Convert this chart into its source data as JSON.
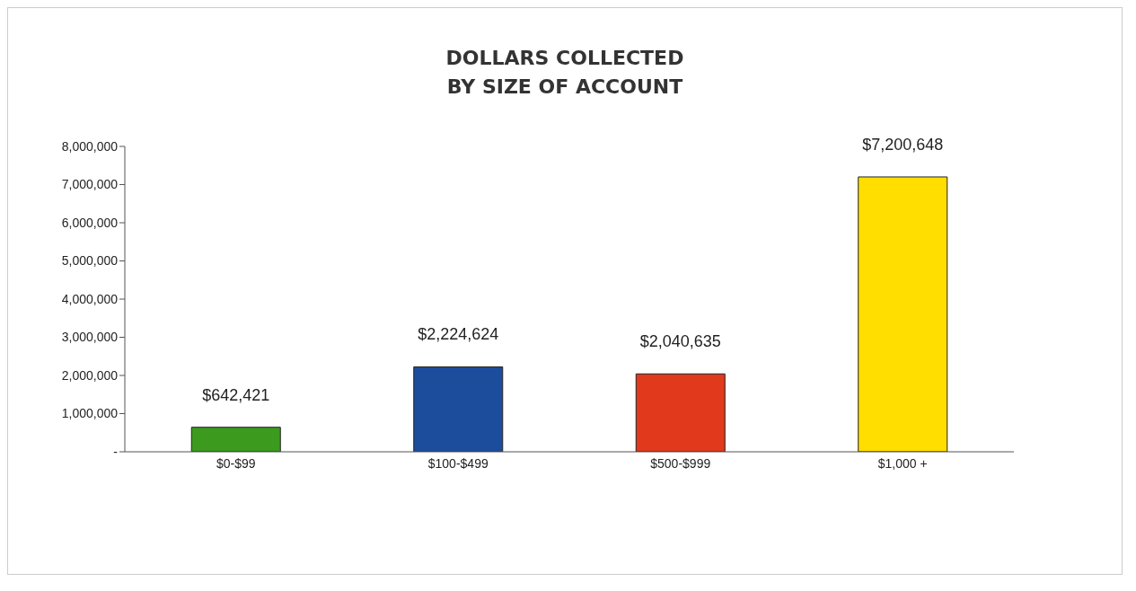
{
  "chart_data": {
    "type": "bar",
    "title": "DOLLARS COLLECTED\nBY SIZE OF ACCOUNT",
    "categories": [
      "$0-$99",
      "$100-$499",
      "$500-$999",
      "$1,000 +"
    ],
    "values": [
      642421,
      2224624,
      2040635,
      7200648
    ],
    "colors": [
      "#3c9a1e",
      "#1c4c9c",
      "#e0391c",
      "#ffde00"
    ],
    "value_labels": [
      "$642,421",
      "$2,224,624",
      "$2,040,635",
      "$7,200,648"
    ],
    "ylim": [
      0,
      8000000
    ],
    "yticks": [
      {
        "value": 0,
        "label": "-"
      },
      {
        "value": 1000000,
        "label": "1,000,000"
      },
      {
        "value": 2000000,
        "label": "2,000,000"
      },
      {
        "value": 3000000,
        "label": "3,000,000"
      },
      {
        "value": 4000000,
        "label": "4,000,000"
      },
      {
        "value": 5000000,
        "label": "5,000,000"
      },
      {
        "value": 6000000,
        "label": "6,000,000"
      },
      {
        "value": 7000000,
        "label": "7,000,000"
      },
      {
        "value": 8000000,
        "label": "8,000,000"
      }
    ]
  }
}
